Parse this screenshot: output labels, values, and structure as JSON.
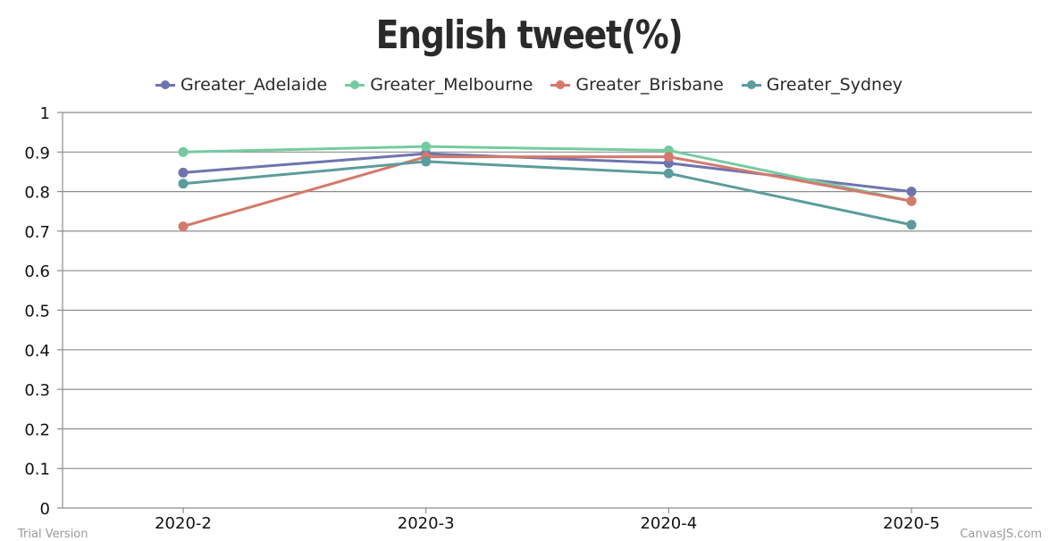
{
  "chart_data": {
    "type": "line",
    "title": "English tweet(%)",
    "categories": [
      "2020-2",
      "2020-3",
      "2020-4",
      "2020-5"
    ],
    "ylim": [
      0,
      1
    ],
    "yticks": [
      "0",
      "0.1",
      "0.2",
      "0.3",
      "0.4",
      "0.5",
      "0.6",
      "0.7",
      "0.8",
      "0.9",
      "1"
    ],
    "grid": true,
    "legend_position": "top-center",
    "series": [
      {
        "name": "Greater_Adelaide",
        "color": "#6f74ae",
        "values": [
          0.848,
          0.896,
          0.872,
          0.8
        ]
      },
      {
        "name": "Greater_Melbourne",
        "color": "#75cba0",
        "values": [
          0.9,
          0.914,
          0.904,
          0.776
        ]
      },
      {
        "name": "Greater_Brisbane",
        "color": "#d4796b",
        "values": [
          0.712,
          0.888,
          0.888,
          0.776
        ]
      },
      {
        "name": "Greater_Sydney",
        "color": "#5c9c9c",
        "values": [
          0.82,
          0.876,
          0.846,
          0.716
        ]
      }
    ]
  },
  "watermarks": {
    "left": "Trial Version",
    "right": "CanvasJS.com"
  }
}
